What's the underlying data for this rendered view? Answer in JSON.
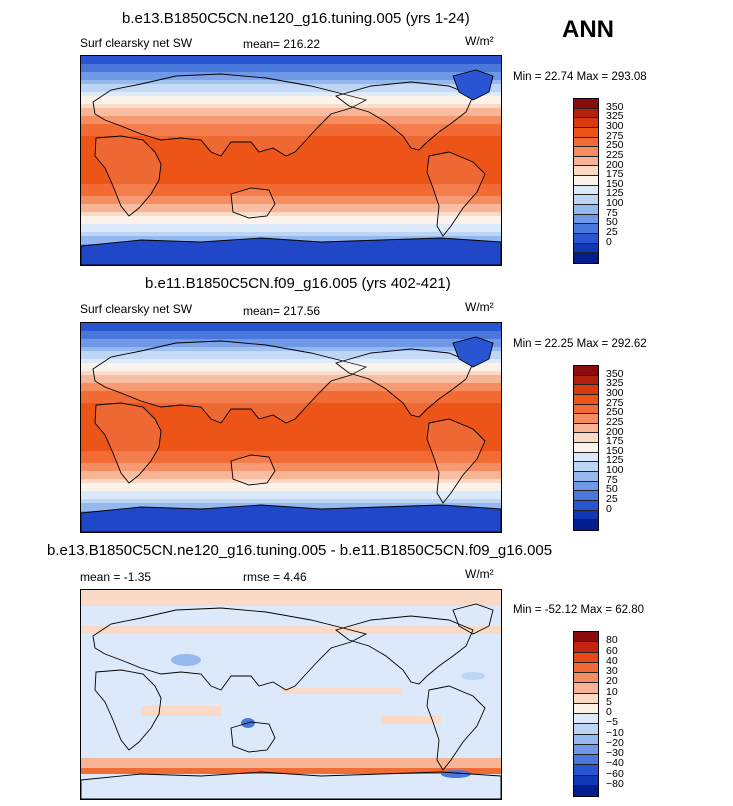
{
  "season": "ANN",
  "panels": [
    {
      "title": "b.e13.B1850C5CN.ne120_g16.tuning.005 (yrs 1-24)",
      "variable": "Surf clearsky net SW",
      "stat_text": "mean= 216.22",
      "units": "W/m²",
      "minmax": "Min =  22.74 Max = 293.08",
      "kind": "abs"
    },
    {
      "title": "b.e11.B1850C5CN.f09_g16.005 (yrs 402-421)",
      "variable": "Surf clearsky net SW",
      "stat_text": "mean= 217.56",
      "units": "W/m²",
      "minmax": "Min =  22.25 Max = 292.62",
      "kind": "abs"
    },
    {
      "title": "b.e13.B1850C5CN.ne120_g16.tuning.005 - b.e11.B1850C5CN.f09_g16.005",
      "variable": "",
      "stat_text": "mean =  -1.35",
      "stat_text2": "rmse =   4.46",
      "units": "W/m²",
      "minmax": "Min = -52.12 Max =  62.80",
      "kind": "diff"
    }
  ],
  "colorbars": {
    "abs": {
      "labels": [
        "350",
        "325",
        "300",
        "275",
        "250",
        "225",
        "200",
        "175",
        "150",
        "125",
        "100",
        "75",
        "50",
        "25",
        "0"
      ],
      "colors": [
        "#8b0c0c",
        "#b3200c",
        "#d83a10",
        "#ec5418",
        "#f26b34",
        "#f58d60",
        "#f8b596",
        "#fad9c6",
        "#fbf3ea",
        "#dce9fa",
        "#bdd5f5",
        "#95b9ee",
        "#6f98e6",
        "#4a77dc",
        "#2a55d2",
        "#0f37b8",
        "#031d8e"
      ]
    },
    "diff": {
      "labels": [
        "80",
        "60",
        "40",
        "30",
        "20",
        "10",
        "5",
        "0",
        "−5",
        "−10",
        "−20",
        "−30",
        "−40",
        "−60",
        "−80"
      ],
      "colors": [
        "#8b0c0c",
        "#c42410",
        "#e84716",
        "#f26b34",
        "#f58d60",
        "#f8b596",
        "#fad9c6",
        "#fdf1e6",
        "#dce9fa",
        "#bdd5f5",
        "#95b9ee",
        "#6f98e6",
        "#4a77dc",
        "#2a55d2",
        "#0f37b8",
        "#031d8e"
      ]
    }
  }
}
